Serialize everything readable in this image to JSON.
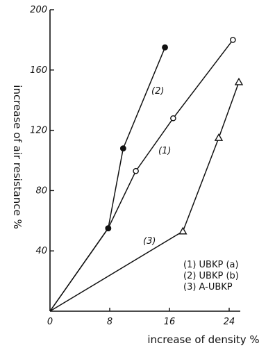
{
  "chart_data": {
    "type": "line",
    "xlabel": "increase of density %",
    "ylabel": "increase of air resistance %",
    "xlim": [
      0,
      28
    ],
    "ylim": [
      0,
      200
    ],
    "xticks": [
      "0",
      "8",
      "16",
      "24"
    ],
    "yticks": [
      "40",
      "80",
      "120",
      "160",
      "200"
    ],
    "grid": false,
    "legend_position": "bottom-right",
    "legend": [
      "(1) UBKP (a)",
      "(2) UBKP (b)",
      "(3) A-UBKP"
    ],
    "series": [
      {
        "name": "(1) UBKP (a)",
        "label": "(1)",
        "marker": "open-circle",
        "x": [
          0,
          7.8,
          11.5,
          16.5,
          24.5
        ],
        "y": [
          0,
          55,
          93,
          128,
          180
        ]
      },
      {
        "name": "(2) UBKP (b)",
        "label": "(2)",
        "marker": "filled-circle",
        "x": [
          0,
          7.8,
          9.8,
          15.4
        ],
        "y": [
          0,
          55,
          108,
          175
        ]
      },
      {
        "name": "(3) A-UBKP",
        "label": "(3)",
        "marker": "open-triangle",
        "x": [
          0,
          17.8,
          22.6,
          25.3
        ],
        "y": [
          0,
          53,
          115,
          152
        ]
      }
    ]
  }
}
